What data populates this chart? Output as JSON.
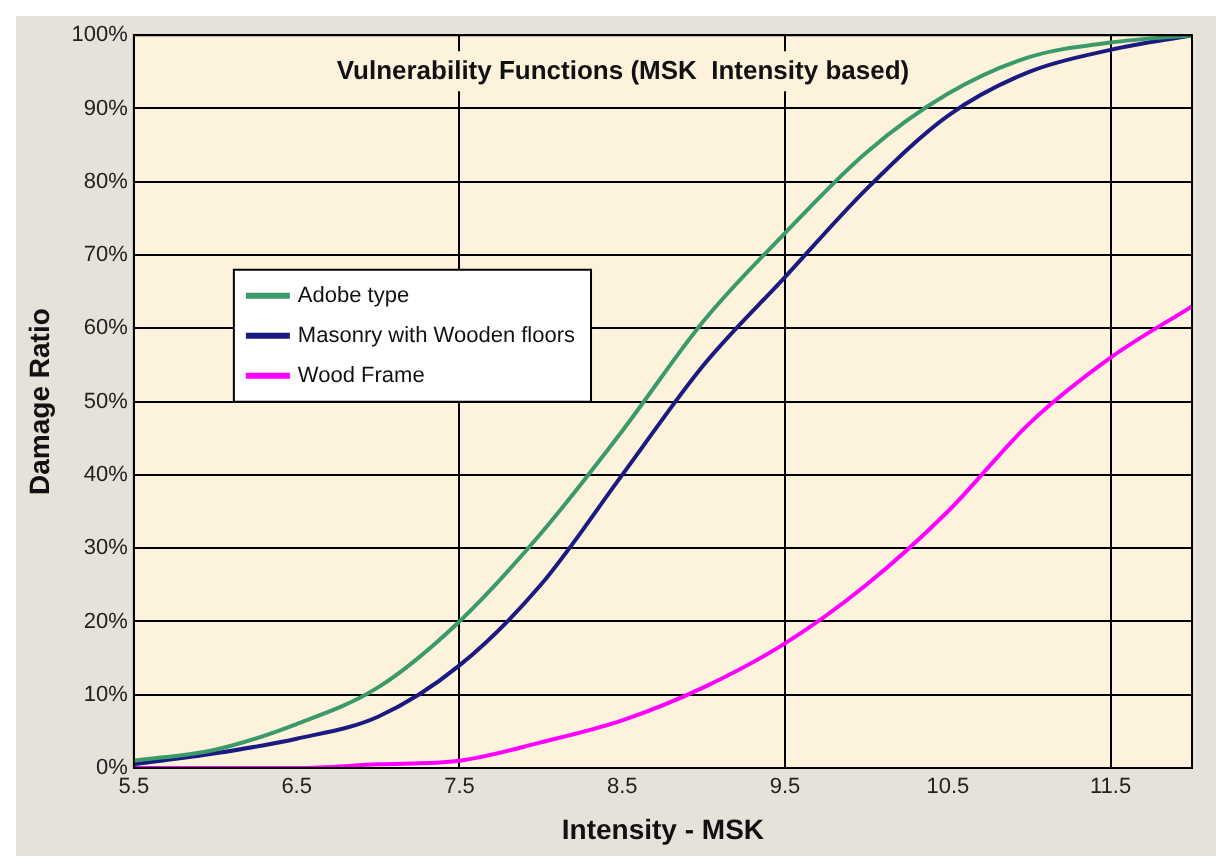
{
  "chart_data": {
    "type": "line",
    "title": "Vulnerability Functions (MSK  Intensity based)",
    "xlabel": "Intensity - MSK",
    "ylabel": "Damage Ratio",
    "x": [
      5.5,
      6,
      6.5,
      7,
      7.5,
      8,
      8.5,
      9,
      9.5,
      10,
      10.5,
      11,
      11.5,
      12
    ],
    "series": [
      {
        "name": "Adobe type",
        "color": "#3a9a6a",
        "values": [
          1,
          2.5,
          6,
          11,
          20,
          32,
          46,
          61,
          73,
          84,
          92,
          97,
          99,
          100
        ]
      },
      {
        "name": "Masonry with Wooden floors",
        "color": "#1a1a80",
        "values": [
          0.5,
          2,
          4,
          7,
          14,
          25,
          40,
          55,
          67,
          79,
          89,
          95,
          98,
          100
        ]
      },
      {
        "name": "Wood Frame",
        "color": "#ff00ff",
        "values": [
          0,
          0,
          0,
          0.5,
          1,
          3.5,
          6.5,
          11,
          17,
          25,
          35,
          47,
          56,
          63
        ]
      }
    ],
    "xlim": [
      5.5,
      12
    ],
    "xticks": [
      5.5,
      6.5,
      7.5,
      8.5,
      9.5,
      10.5,
      11.5
    ],
    "ylim": [
      0,
      100
    ],
    "yticks": [
      {
        "value": 0,
        "label": "0%"
      },
      {
        "value": 10,
        "label": "10%"
      },
      {
        "value": 20,
        "label": "20%"
      },
      {
        "value": 30,
        "label": "30%"
      },
      {
        "value": 40,
        "label": "40%"
      },
      {
        "value": 50,
        "label": "50%"
      },
      {
        "value": 60,
        "label": "60%"
      },
      {
        "value": 70,
        "label": "70%"
      },
      {
        "value": 80,
        "label": "80%"
      },
      {
        "value": 90,
        "label": "90%"
      },
      {
        "value": 100,
        "label": "100%"
      }
    ],
    "grid": true,
    "legend": "left",
    "marker": "none",
    "line_style": "solid"
  }
}
